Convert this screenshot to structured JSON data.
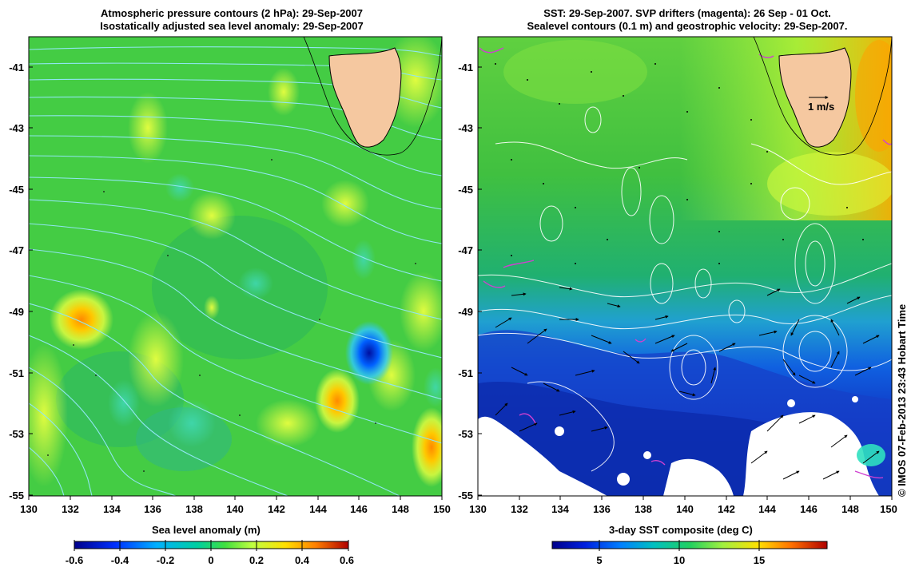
{
  "left_panel": {
    "title_line1": "Atmospheric pressure contours (2 hPa): 29-Sep-2007",
    "title_line2": "Isostatically adjusted sea level anomaly: 29-Sep-2007",
    "colorbar_title": "Sea level anomaly (m)",
    "colorbar_ticks": [
      "-0.6",
      "-0.4",
      "-0.2",
      "0",
      "0.2",
      "0.4",
      "0.6"
    ],
    "colorbar_range": [
      -0.6,
      0.6
    ]
  },
  "right_panel": {
    "title_line1": "SST: 29-Sep-2007. SVP drifters (magenta): 26 Sep - 01 Oct.",
    "title_line2": "Sealevel contours (0.1 m) and geostrophic velocity: 29-Sep-2007.",
    "colorbar_title": "3-day SST composite (deg C)",
    "colorbar_ticks": [
      "5",
      "10",
      "15"
    ],
    "velocity_scale_label": "1 m/s"
  },
  "map": {
    "lat_ticks": [
      "-41",
      "-43",
      "-45",
      "-47",
      "-49",
      "-51",
      "-53",
      "-55"
    ],
    "lon_ticks": [
      "130",
      "132",
      "134",
      "136",
      "138",
      "140",
      "142",
      "144",
      "146",
      "148",
      "150"
    ],
    "lat_range": [
      -55,
      -40
    ],
    "lon_range": [
      130,
      150
    ]
  },
  "credit": "© IMOS 07-Feb-2013 23:43 Hobart Time",
  "colors": {
    "land": "#f5c8a0",
    "contour_left": "#8fe6f0",
    "contour_right": "#ffffff",
    "drifter": "#d040d0"
  }
}
